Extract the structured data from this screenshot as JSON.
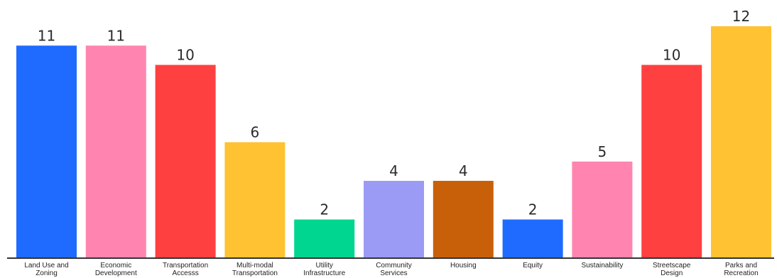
{
  "chart_data": {
    "type": "bar",
    "categories": [
      [
        "Land Use and",
        "Zoning"
      ],
      [
        "Economic",
        "Development"
      ],
      [
        "Transportation",
        "Accesss"
      ],
      [
        "Multi-modal",
        "Transportation"
      ],
      [
        "Utility",
        "Infrastructure"
      ],
      [
        "Community",
        "Services"
      ],
      [
        "Housing"
      ],
      [
        "Equity"
      ],
      [
        "Sustainability"
      ],
      [
        "Streetscape",
        "Design"
      ],
      [
        "Parks and",
        "Recreation"
      ]
    ],
    "values": [
      11,
      11,
      10,
      6,
      2,
      4,
      4,
      2,
      5,
      10,
      12
    ],
    "colors": [
      "#1f6bff",
      "#ff85b0",
      "#ff4040",
      "#ffc233",
      "#00d68f",
      "#9b9bf5",
      "#c8600a",
      "#1f6bff",
      "#ff85b0",
      "#ff4040",
      "#ffc233"
    ],
    "axis_color": "#333333",
    "ylim": [
      0,
      12
    ],
    "grid": false,
    "legend": "none"
  }
}
